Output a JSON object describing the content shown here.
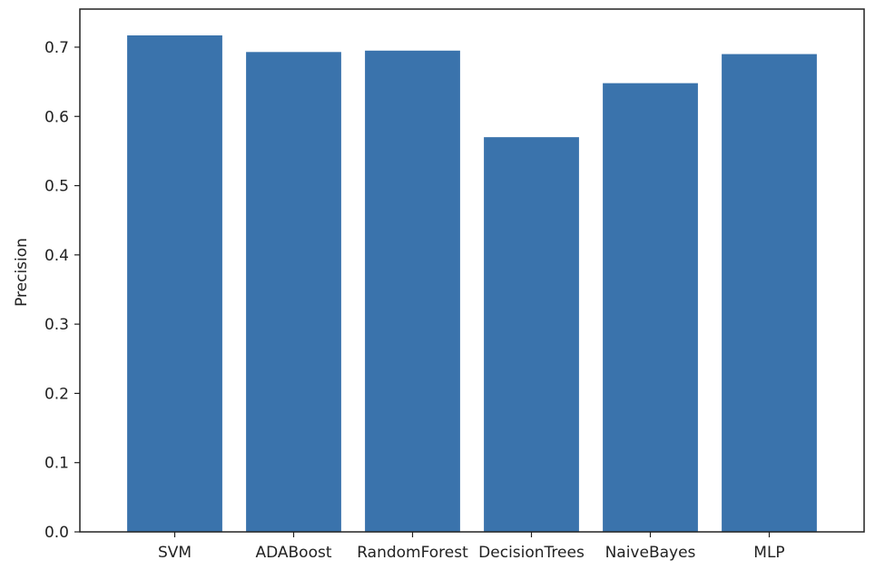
{
  "chart_data": {
    "type": "bar",
    "categories": [
      "SVM",
      "ADABoost",
      "RandomForest",
      "DecisionTrees",
      "NaiveBayes",
      "MLP"
    ],
    "values": [
      0.717,
      0.693,
      0.695,
      0.57,
      0.648,
      0.69
    ],
    "title": "",
    "xlabel": "",
    "ylabel": "Precision",
    "ylim": [
      0,
      0.755
    ],
    "yticks": [
      0.0,
      0.1,
      0.2,
      0.3,
      0.4,
      0.5,
      0.6,
      0.7
    ],
    "ytick_labels": [
      "0.0",
      "0.1",
      "0.2",
      "0.3",
      "0.4",
      "0.5",
      "0.6",
      "0.7"
    ],
    "bar_color": "#3a73ac",
    "grid": false,
    "legend": "none"
  }
}
